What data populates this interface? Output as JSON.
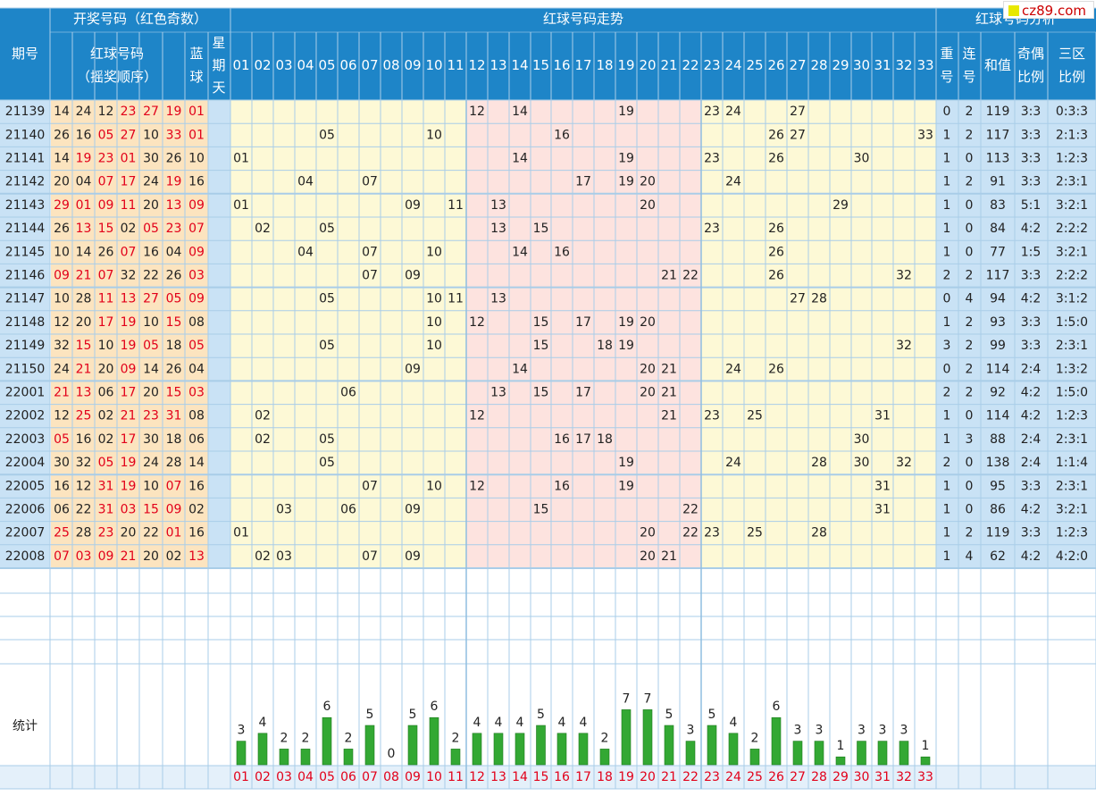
{
  "header": {
    "draw_title": "开奖号码（红色奇数）",
    "trend_title": "红球号码走势",
    "analysis_title": "红球号码分析",
    "period_label": "期号",
    "red_order_label_1": "红球号码",
    "red_order_label_2": "（摇奖顺序）",
    "blue_label_1": "蓝",
    "blue_label_2": "球",
    "sunday_label_1": "星",
    "sunday_label_2": "期",
    "sunday_label_3": "天",
    "repeat_label_1": "重",
    "repeat_label_2": "号",
    "consec_label_1": "连",
    "consec_label_2": "号",
    "sum_label": "和值",
    "oddeven_label_1": "奇偶",
    "oddeven_label_2": "比例",
    "zone_label_1": "三区",
    "zone_label_2": "比例",
    "stats_label": "统计"
  },
  "watermark": {
    "text": "cz89.com"
  },
  "colors": {
    "header_bg": "#1e85c8",
    "header_text": "#ffffff",
    "row_label_bg": "#c9e2f5",
    "draw_bg": "#fce4bf",
    "trend_bg": "#fdf9d6",
    "zone_mid_bg": "#fde3df",
    "grid_line": "#a9cde8",
    "odd_red": "#e2001a",
    "green_bar": "#33a833",
    "footer_num_bg": "#e4f0fa"
  },
  "chart_data": {
    "type": "table",
    "number_labels": [
      "01",
      "02",
      "03",
      "04",
      "05",
      "06",
      "07",
      "08",
      "09",
      "10",
      "11",
      "12",
      "13",
      "14",
      "15",
      "16",
      "17",
      "18",
      "19",
      "20",
      "21",
      "22",
      "23",
      "24",
      "25",
      "26",
      "27",
      "28",
      "29",
      "30",
      "31",
      "32",
      "33"
    ],
    "rows": [
      {
        "period": "21139",
        "reds": [
          "14",
          "24",
          "12",
          "23",
          "27",
          "19"
        ],
        "blue": "01",
        "repeat": "0",
        "consec": "2",
        "sum": "119",
        "oe": "3:3",
        "zone": "0:3:3"
      },
      {
        "period": "21140",
        "reds": [
          "26",
          "16",
          "05",
          "27",
          "10",
          "33"
        ],
        "blue": "01",
        "repeat": "1",
        "consec": "2",
        "sum": "117",
        "oe": "3:3",
        "zone": "2:1:3"
      },
      {
        "period": "21141",
        "reds": [
          "14",
          "19",
          "23",
          "01",
          "30",
          "26"
        ],
        "blue": "10",
        "repeat": "1",
        "consec": "0",
        "sum": "113",
        "oe": "3:3",
        "zone": "1:2:3"
      },
      {
        "period": "21142",
        "reds": [
          "20",
          "04",
          "07",
          "17",
          "24",
          "19"
        ],
        "blue": "16",
        "repeat": "1",
        "consec": "2",
        "sum": "91",
        "oe": "3:3",
        "zone": "2:3:1"
      },
      {
        "period": "21143",
        "reds": [
          "29",
          "01",
          "09",
          "11",
          "20",
          "13"
        ],
        "blue": "09",
        "repeat": "1",
        "consec": "0",
        "sum": "83",
        "oe": "5:1",
        "zone": "3:2:1"
      },
      {
        "period": "21144",
        "reds": [
          "26",
          "13",
          "15",
          "02",
          "05",
          "23"
        ],
        "blue": "07",
        "repeat": "1",
        "consec": "0",
        "sum": "84",
        "oe": "4:2",
        "zone": "2:2:2"
      },
      {
        "period": "21145",
        "reds": [
          "10",
          "14",
          "26",
          "07",
          "16",
          "04"
        ],
        "blue": "09",
        "repeat": "1",
        "consec": "0",
        "sum": "77",
        "oe": "1:5",
        "zone": "3:2:1"
      },
      {
        "period": "21146",
        "reds": [
          "09",
          "21",
          "07",
          "32",
          "22",
          "26"
        ],
        "blue": "03",
        "repeat": "2",
        "consec": "2",
        "sum": "117",
        "oe": "3:3",
        "zone": "2:2:2"
      },
      {
        "period": "21147",
        "reds": [
          "10",
          "28",
          "11",
          "13",
          "27",
          "05"
        ],
        "blue": "09",
        "repeat": "0",
        "consec": "4",
        "sum": "94",
        "oe": "4:2",
        "zone": "3:1:2"
      },
      {
        "period": "21148",
        "reds": [
          "12",
          "20",
          "17",
          "19",
          "10",
          "15"
        ],
        "blue": "08",
        "repeat": "1",
        "consec": "2",
        "sum": "93",
        "oe": "3:3",
        "zone": "1:5:0"
      },
      {
        "period": "21149",
        "reds": [
          "32",
          "15",
          "10",
          "19",
          "05",
          "18"
        ],
        "blue": "05",
        "repeat": "3",
        "consec": "2",
        "sum": "99",
        "oe": "3:3",
        "zone": "2:3:1"
      },
      {
        "period": "21150",
        "reds": [
          "24",
          "21",
          "20",
          "09",
          "14",
          "26"
        ],
        "blue": "04",
        "repeat": "0",
        "consec": "2",
        "sum": "114",
        "oe": "2:4",
        "zone": "1:3:2"
      },
      {
        "period": "22001",
        "reds": [
          "21",
          "13",
          "06",
          "17",
          "20",
          "15"
        ],
        "blue": "03",
        "repeat": "2",
        "consec": "2",
        "sum": "92",
        "oe": "4:2",
        "zone": "1:5:0"
      },
      {
        "period": "22002",
        "reds": [
          "12",
          "25",
          "02",
          "21",
          "23",
          "31"
        ],
        "blue": "08",
        "repeat": "1",
        "consec": "0",
        "sum": "114",
        "oe": "4:2",
        "zone": "1:2:3"
      },
      {
        "period": "22003",
        "reds": [
          "05",
          "16",
          "02",
          "17",
          "30",
          "18"
        ],
        "blue": "06",
        "repeat": "1",
        "consec": "3",
        "sum": "88",
        "oe": "2:4",
        "zone": "2:3:1"
      },
      {
        "period": "22004",
        "reds": [
          "30",
          "32",
          "05",
          "19",
          "24",
          "28"
        ],
        "blue": "14",
        "repeat": "2",
        "consec": "0",
        "sum": "138",
        "oe": "2:4",
        "zone": "1:1:4"
      },
      {
        "period": "22005",
        "reds": [
          "16",
          "12",
          "31",
          "19",
          "10",
          "07"
        ],
        "blue": "16",
        "repeat": "1",
        "consec": "0",
        "sum": "95",
        "oe": "3:3",
        "zone": "2:3:1"
      },
      {
        "period": "22006",
        "reds": [
          "06",
          "22",
          "31",
          "03",
          "15",
          "09"
        ],
        "blue": "02",
        "repeat": "1",
        "consec": "0",
        "sum": "86",
        "oe": "4:2",
        "zone": "3:2:1"
      },
      {
        "period": "22007",
        "reds": [
          "25",
          "28",
          "23",
          "20",
          "22",
          "01"
        ],
        "blue": "16",
        "repeat": "1",
        "consec": "2",
        "sum": "119",
        "oe": "3:3",
        "zone": "1:2:3"
      },
      {
        "period": "22008",
        "reds": [
          "07",
          "03",
          "09",
          "21",
          "20",
          "02"
        ],
        "blue": "13",
        "repeat": "1",
        "consec": "4",
        "sum": "62",
        "oe": "4:2",
        "zone": "4:2:0"
      }
    ],
    "occurrence_counts": [
      3,
      4,
      2,
      2,
      6,
      2,
      5,
      0,
      5,
      6,
      2,
      4,
      4,
      4,
      5,
      4,
      4,
      2,
      7,
      7,
      5,
      3,
      5,
      4,
      2,
      6,
      3,
      3,
      1,
      3,
      3,
      3,
      1
    ]
  }
}
